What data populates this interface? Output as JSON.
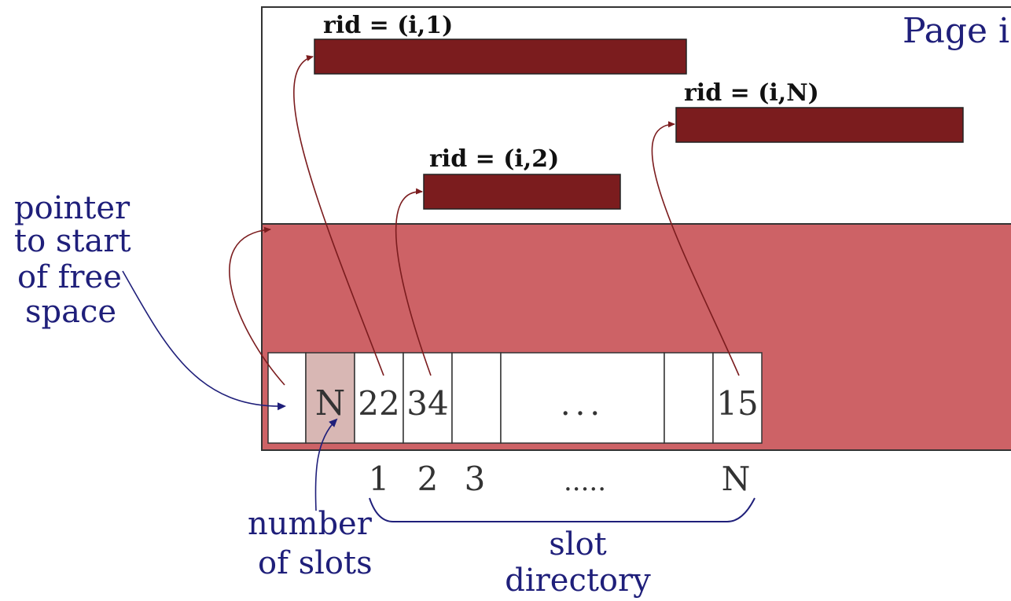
{
  "page_label": "Page i",
  "records": [
    {
      "label": "rid = (i,1)"
    },
    {
      "label": "rid = (i,N)"
    },
    {
      "label": "rid = (i,2)"
    }
  ],
  "slot_cells": {
    "num_slots": "N",
    "entries": [
      "22",
      "34",
      "",
      "...",
      "",
      "15"
    ]
  },
  "slot_numbers": [
    "1",
    "2",
    "3",
    ".....",
    "N"
  ],
  "annotations": {
    "free_space_pointer": [
      "pointer",
      "to start",
      "of free",
      "space"
    ],
    "number_of_slots": [
      "number",
      "of slots"
    ],
    "slot_directory": [
      "slot",
      "directory"
    ]
  },
  "colors": {
    "record_fill": "#7b1c1e",
    "free_space_fill": "#cd6266",
    "n_cell_fill": "#d8b7b4",
    "label_blue": "#1f1f7a",
    "pointer_line": "#7b1c1e",
    "outline": "#333333"
  }
}
